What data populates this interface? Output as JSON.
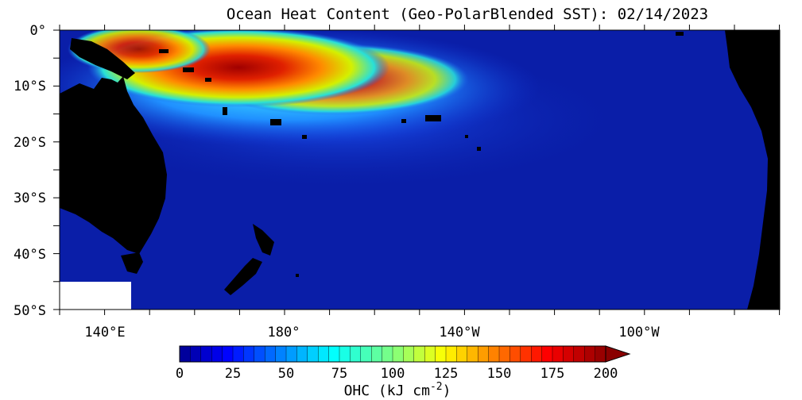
{
  "title": "Ocean Heat Content (Geo-PolarBlended SST): 02/14/2023",
  "lat_labels": [
    "0°",
    "10°S",
    "20°S",
    "30°S",
    "40°S",
    "50°S"
  ],
  "lon_labels": [
    "140°E",
    "180°",
    "140°W",
    "100°W"
  ],
  "colorbar": {
    "ticks": [
      "0",
      "25",
      "50",
      "75",
      "100",
      "125",
      "150",
      "175",
      "200"
    ],
    "min": 0,
    "max": 200,
    "label": "OHC (kJ cm",
    "label_exp": "-2",
    "label_close": ")"
  },
  "colors": {
    "land": "#000000",
    "background_ocean": "#0a1ea8",
    "missing": "#ffffff",
    "frame": "#000000"
  }
}
